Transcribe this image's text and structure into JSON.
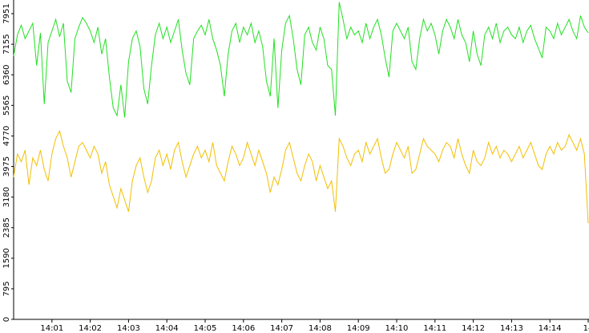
{
  "chart_data": {
    "type": "line",
    "categories": [
      null,
      null,
      null,
      null,
      null,
      null,
      null,
      null,
      null,
      null,
      "14:01",
      null,
      null,
      null,
      null,
      null,
      null,
      null,
      null,
      null,
      "14:02",
      null,
      null,
      null,
      null,
      null,
      null,
      null,
      null,
      null,
      "14:03",
      null,
      null,
      null,
      null,
      null,
      null,
      null,
      null,
      null,
      "14:04",
      null,
      null,
      null,
      null,
      null,
      null,
      null,
      null,
      null,
      "14:05",
      null,
      null,
      null,
      null,
      null,
      null,
      null,
      null,
      null,
      "14:06",
      null,
      null,
      null,
      null,
      null,
      null,
      null,
      null,
      null,
      "14:07",
      null,
      null,
      null,
      null,
      null,
      null,
      null,
      null,
      null,
      "14:08",
      null,
      null,
      null,
      null,
      null,
      null,
      null,
      null,
      null,
      "14:09",
      null,
      null,
      null,
      null,
      null,
      null,
      null,
      null,
      null,
      "14:10",
      null,
      null,
      null,
      null,
      null,
      null,
      null,
      null,
      null,
      "14:11",
      null,
      null,
      null,
      null,
      null,
      null,
      null,
      null,
      null,
      "14:12",
      null,
      null,
      null,
      null,
      null,
      null,
      null,
      null,
      null,
      "14:13",
      null,
      null,
      null,
      null,
      null,
      null,
      null,
      null,
      null,
      "14:14",
      null,
      null,
      null,
      null,
      null,
      null,
      null,
      null,
      null,
      "14"
    ],
    "series": [
      {
        "color": "#22e022",
        "values": [
          6850,
          7400,
          7650,
          7300,
          7500,
          7700,
          6600,
          7450,
          5600,
          7200,
          7500,
          7800,
          7350,
          7700,
          6200,
          5900,
          7300,
          7600,
          7850,
          7700,
          7500,
          7200,
          7600,
          6900,
          7300,
          6300,
          5500,
          5300,
          6100,
          5250,
          6700,
          7300,
          7500,
          7100,
          6000,
          5600,
          6600,
          7400,
          7700,
          7300,
          7600,
          7200,
          7500,
          7800,
          7000,
          6400,
          6100,
          7300,
          7500,
          7650,
          7400,
          7800,
          7300,
          7000,
          6600,
          5800,
          6900,
          7500,
          7700,
          7200,
          7600,
          7400,
          7700,
          7200,
          7500,
          7100,
          6200,
          5800,
          7300,
          5500,
          7000,
          7700,
          7900,
          7300,
          6500,
          6100,
          7400,
          7600,
          7200,
          7000,
          7600,
          7300,
          6600,
          6500,
          5300,
          8250,
          7800,
          7300,
          7600,
          7400,
          7500,
          7200,
          7700,
          7300,
          7600,
          7800,
          7400,
          6800,
          6300,
          7500,
          7700,
          7500,
          7300,
          7600,
          6700,
          6500,
          7300,
          7800,
          7500,
          7700,
          7400,
          6900,
          7500,
          7800,
          7600,
          7300,
          7800,
          7400,
          7200,
          6700,
          7500,
          6900,
          6600,
          7400,
          7600,
          7300,
          7700,
          7200,
          7500,
          7600,
          7400,
          7300,
          7600,
          7200,
          7500,
          7650,
          7300,
          7050,
          6800,
          7600,
          7500,
          7300,
          7700,
          7400,
          7600,
          7800,
          7500,
          7300,
          7900,
          7600,
          7450
        ]
      },
      {
        "color": "#f2bf00",
        "values": [
          3700,
          4300,
          4100,
          4400,
          3500,
          4200,
          4000,
          4400,
          3900,
          3600,
          4300,
          4700,
          4900,
          4500,
          4200,
          3700,
          4100,
          4500,
          4600,
          4400,
          4200,
          4500,
          4300,
          3800,
          4100,
          3500,
          3200,
          2900,
          3400,
          3100,
          2800,
          3600,
          4000,
          4200,
          3700,
          3300,
          3600,
          4200,
          4400,
          4000,
          4300,
          3900,
          4400,
          4600,
          4100,
          3700,
          4000,
          4300,
          4500,
          4200,
          4400,
          4100,
          4600,
          4000,
          3800,
          3600,
          4100,
          4500,
          4300,
          4000,
          4200,
          4600,
          4300,
          4000,
          4400,
          4100,
          3800,
          3300,
          3700,
          3500,
          3900,
          4400,
          4600,
          4200,
          3800,
          3600,
          4000,
          4300,
          4100,
          3600,
          4000,
          3700,
          3400,
          3600,
          2800,
          4700,
          4500,
          4200,
          4000,
          4300,
          4400,
          4100,
          4600,
          4300,
          4500,
          4700,
          4200,
          3800,
          3900,
          4300,
          4600,
          4400,
          4200,
          4500,
          3800,
          3900,
          4300,
          4700,
          4500,
          4400,
          4300,
          4100,
          4400,
          4600,
          4500,
          4200,
          4700,
          4300,
          4000,
          3800,
          4400,
          4100,
          4000,
          4200,
          4600,
          4300,
          4500,
          4200,
          4400,
          4300,
          4100,
          4300,
          4500,
          4200,
          4400,
          4600,
          4300,
          4000,
          3900,
          4300,
          4500,
          4300,
          4600,
          4400,
          4500,
          4800,
          4600,
          4400,
          4700,
          4300,
          2500
        ]
      }
    ],
    "ylim": [
      0,
      7951
    ],
    "yticks": [
      0,
      795,
      1590,
      2385,
      3180,
      3975,
      4770,
      5565,
      6360,
      7155,
      7951
    ]
  }
}
